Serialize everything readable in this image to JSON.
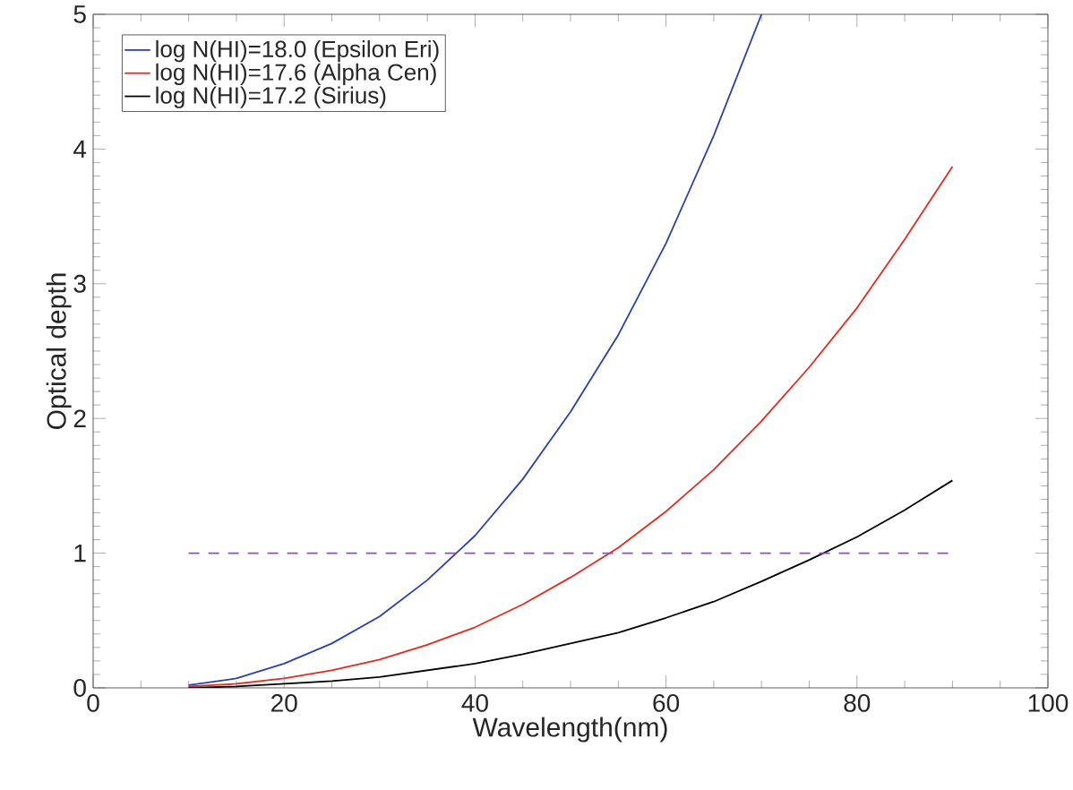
{
  "chart_data": {
    "type": "line",
    "xlabel": "Wavelength(nm)",
    "ylabel": "Optical depth",
    "xlim": [
      0,
      100
    ],
    "xticks": [
      0,
      20,
      40,
      60,
      80,
      100
    ],
    "ylim": [
      0,
      5
    ],
    "yticks": [
      0,
      1,
      2,
      3,
      4,
      5
    ],
    "legend": "top left",
    "grid": false,
    "marker": "none",
    "line_style": "solid",
    "x": [
      10,
      15,
      20,
      25,
      30,
      35,
      40,
      45,
      50,
      55,
      60,
      65,
      70,
      75,
      80,
      85,
      90
    ],
    "series": [
      {
        "name": "log N(HI)=18.0 (Epsilon Eri)",
        "color": "#2a3fb0",
        "x": [
          10,
          15,
          20,
          25,
          30,
          35,
          40,
          45,
          50,
          55,
          60,
          65,
          70
        ],
        "values": [
          0.02,
          0.07,
          0.18,
          0.33,
          0.53,
          0.8,
          1.13,
          1.55,
          2.05,
          2.62,
          3.3,
          4.1,
          5.0
        ]
      },
      {
        "name": "log N(HI)=17.6 (Alpha Cen)",
        "color": "#e8291c",
        "values": [
          0.01,
          0.03,
          0.07,
          0.13,
          0.21,
          0.32,
          0.45,
          0.62,
          0.82,
          1.04,
          1.31,
          1.62,
          1.98,
          2.38,
          2.82,
          3.33,
          3.87
        ]
      },
      {
        "name": "log N(HI)=17.2 (Sirius)",
        "color": "#000000",
        "values": [
          0.0,
          0.01,
          0.03,
          0.05,
          0.08,
          0.13,
          0.18,
          0.25,
          0.33,
          0.41,
          0.52,
          0.64,
          0.79,
          0.95,
          1.12,
          1.32,
          1.54
        ]
      }
    ],
    "ref_lines": [
      {
        "axis": "y",
        "value": 1,
        "color": "#8a4fc8",
        "line_style": "dashed"
      }
    ]
  }
}
